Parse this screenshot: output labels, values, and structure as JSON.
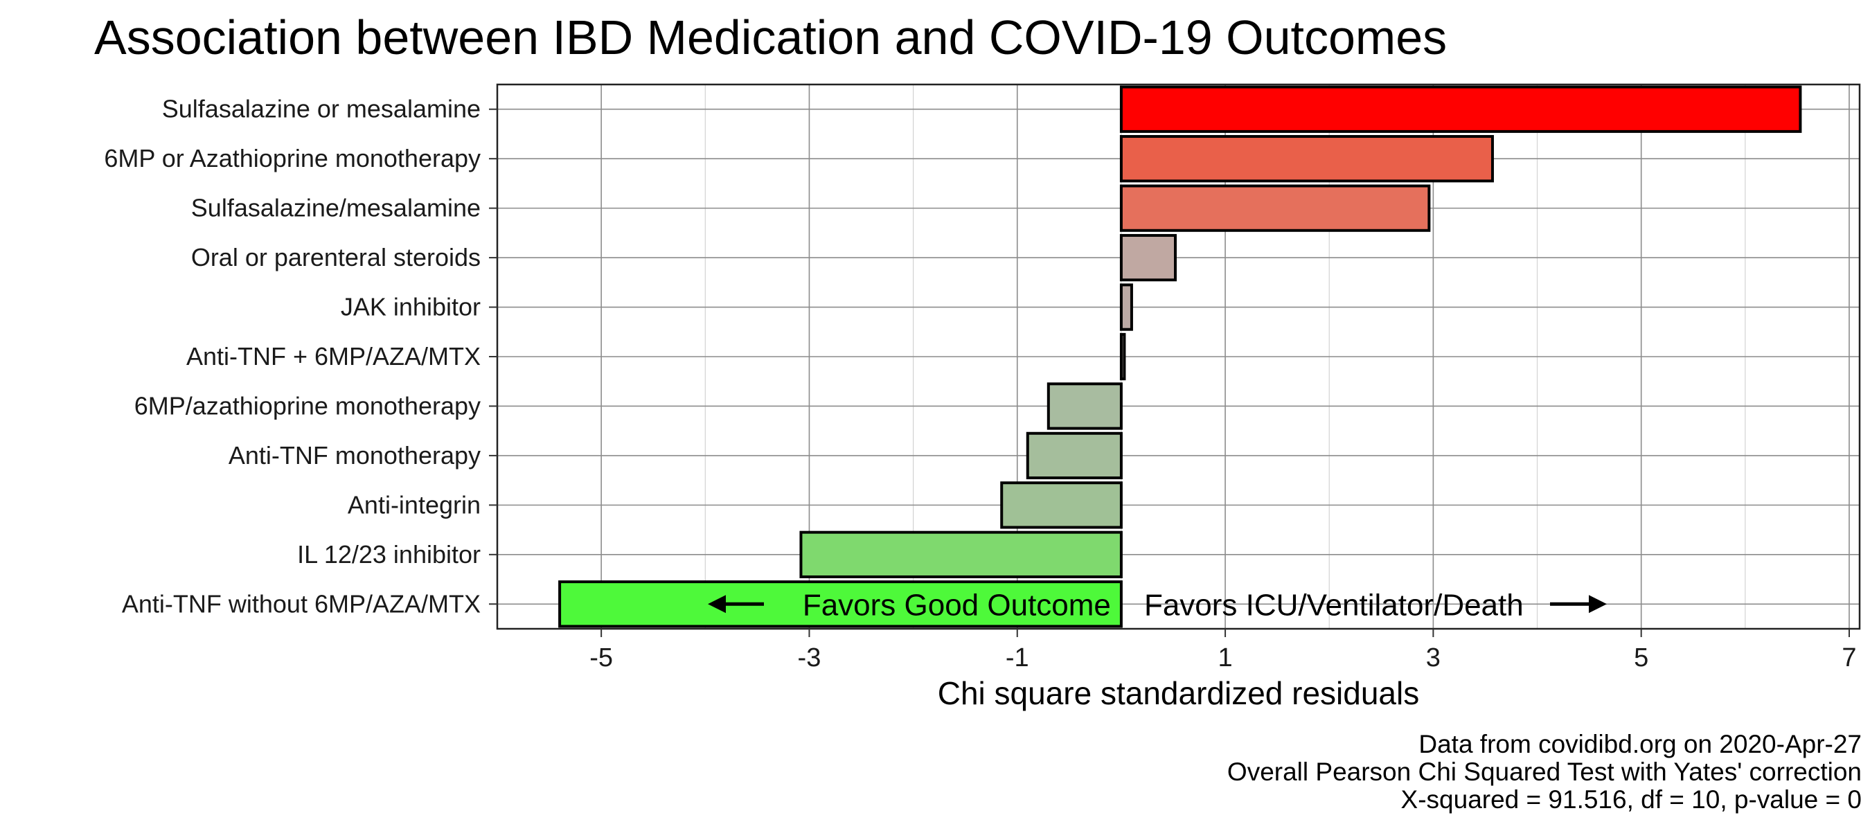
{
  "chart_data": {
    "type": "bar",
    "orientation": "horizontal",
    "title": "Association between IBD Medication and COVID-19 Outcomes",
    "xlabel": "Chi square standardized residuals",
    "ylabel": "",
    "xlim": [
      -6,
      7.1
    ],
    "xticks": [
      -5,
      -3,
      -1,
      1,
      3,
      5,
      7
    ],
    "grid": true,
    "legend": "none",
    "categories": [
      "Sulfasalazine or mesalamine",
      "6MP or Azathioprine monotherapy",
      "Sulfasalazine/mesalamine",
      "Oral or parenteral steroids",
      "JAK inhibitor",
      "Anti-TNF + 6MP/AZA/MTX",
      "6MP/azathioprine monotherapy",
      "Anti-TNF monotherapy",
      "Anti-integrin",
      "IL 12/23 inhibitor",
      "Anti-TNF without 6MP/AZA/MTX"
    ],
    "values": [
      6.53,
      3.57,
      2.96,
      0.52,
      0.1,
      0.03,
      -0.7,
      -0.9,
      -1.15,
      -3.08,
      -5.4
    ],
    "bar_colors": [
      "#ff0000",
      "#e9604a",
      "#e5705c",
      "#c0a8a2",
      "#bcaaa5",
      "#b8b0aa",
      "#a8bca0",
      "#a5be9c",
      "#a0c196",
      "#7fd96e",
      "#4ef93a"
    ],
    "annotations": {
      "left": "Favors Good Outcome",
      "right": "Favors ICU/Ventilator/Death"
    },
    "caption": [
      "Data from covidibd.org on 2020-Apr-27",
      "Overall Pearson Chi Squared Test with Yates' correction",
      "X-squared = 91.516, df = 10, p-value = 0"
    ]
  }
}
